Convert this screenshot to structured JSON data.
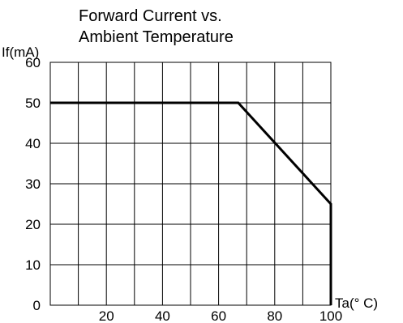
{
  "chart_data": {
    "type": "line",
    "title_lines": [
      "Forward Current  vs.",
      "Ambient Temperature"
    ],
    "ylabel": "If(mA)",
    "xlabel": "Ta(° C)",
    "xlim": [
      0,
      100
    ],
    "ylim": [
      0,
      60
    ],
    "x_ticks": [
      20,
      40,
      60,
      80,
      100
    ],
    "y_ticks": [
      0,
      10,
      20,
      30,
      40,
      50,
      60
    ],
    "grid": true,
    "series": [
      {
        "x": [
          0,
          67,
          100,
          100
        ],
        "y": [
          50,
          50,
          25,
          0
        ]
      }
    ],
    "line_color": "#000000"
  }
}
